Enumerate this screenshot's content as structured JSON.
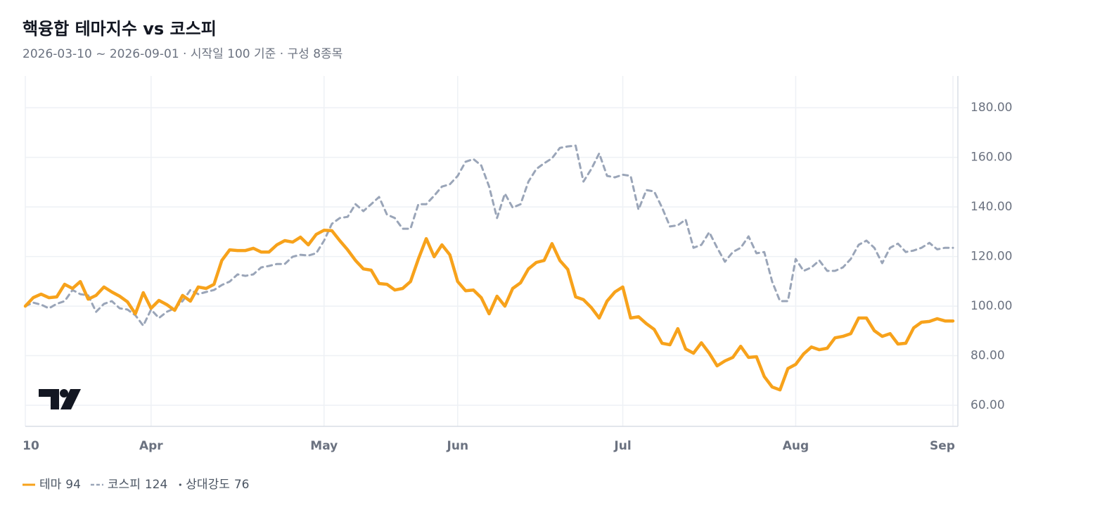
{
  "chart_data": {
    "type": "line",
    "title": "핵융합 테마지수 vs 코스피",
    "subtitle": "2026-03-10 ~ 2026-09-01 · 시작일 100 기준 · 구성 8종목",
    "categories": [
      "10",
      null,
      null,
      null,
      null,
      null,
      null,
      null,
      null,
      null,
      null,
      null,
      null,
      null,
      null,
      null,
      "Apr",
      null,
      null,
      null,
      null,
      null,
      null,
      null,
      null,
      null,
      null,
      null,
      null,
      null,
      null,
      null,
      null,
      null,
      null,
      null,
      null,
      null,
      "May",
      null,
      null,
      null,
      null,
      null,
      null,
      null,
      null,
      null,
      null,
      null,
      null,
      null,
      null,
      null,
      null,
      "Jun",
      null,
      null,
      null,
      null,
      null,
      null,
      null,
      null,
      null,
      null,
      null,
      null,
      null,
      null,
      null,
      null,
      null,
      null,
      null,
      null,
      "Jul",
      null,
      null,
      null,
      null,
      null,
      null,
      null,
      null,
      null,
      null,
      null,
      null,
      null,
      null,
      null,
      null,
      null,
      null,
      null,
      null,
      null,
      "Aug",
      null,
      null,
      null,
      null,
      null,
      null,
      null,
      null,
      null,
      null,
      null,
      null,
      null,
      null,
      null,
      null,
      null,
      null,
      null,
      "Sep"
    ],
    "series": [
      {
        "name": "테마",
        "color": "#f7a21b",
        "dashed": false,
        "values": [
          100,
          103.4,
          104.8,
          103.4,
          103.7,
          108.8,
          107.1,
          109.9,
          102.8,
          104.3,
          107.7,
          105.7,
          104.0,
          101.7,
          96.9,
          105.4,
          99.1,
          102.3,
          100.6,
          98.3,
          104.3,
          102.0,
          107.7,
          107.1,
          108.8,
          118.4,
          122.7,
          122.4,
          122.4,
          123.3,
          121.8,
          121.8,
          124.7,
          126.4,
          125.8,
          127.8,
          124.7,
          128.9,
          130.6,
          130.4,
          126.4,
          122.7,
          118.4,
          115.0,
          114.5,
          109.1,
          108.8,
          106.5,
          107.1,
          109.9,
          119.0,
          127.2,
          119.9,
          124.7,
          120.7,
          109.9,
          106.2,
          106.5,
          103.4,
          96.9,
          104.0,
          100.0,
          107.1,
          109.4,
          115.0,
          117.6,
          118.4,
          125.2,
          118.4,
          114.8,
          103.7,
          102.6,
          99.4,
          95.2,
          102.0,
          105.7,
          107.7,
          95.2,
          95.7,
          92.9,
          90.6,
          85.0,
          84.4,
          90.9,
          82.7,
          81.0,
          85.2,
          81.0,
          75.9,
          77.9,
          79.3,
          83.8,
          79.3,
          79.6,
          71.6,
          67.4,
          66.2,
          74.8,
          76.5,
          80.7,
          83.5,
          82.4,
          83.0,
          87.2,
          87.8,
          88.9,
          95.2,
          95.2,
          90.1,
          87.8,
          88.9,
          84.7,
          85.0,
          91.2,
          93.5,
          93.8,
          94.9,
          94.0,
          94.0
        ]
      },
      {
        "name": "코스피",
        "color": "#9aa5b8",
        "dashed": true,
        "values": [
          100,
          101.4,
          100.6,
          99.1,
          100.9,
          102.0,
          106.5,
          104.8,
          104.3,
          97.7,
          100.9,
          102.0,
          99.1,
          98.6,
          96.3,
          92.1,
          98.6,
          95.2,
          97.7,
          99.1,
          102.0,
          106.5,
          104.8,
          105.7,
          106.5,
          108.5,
          109.9,
          112.8,
          112.2,
          112.8,
          115.6,
          116.2,
          117.0,
          117.0,
          119.9,
          120.7,
          120.4,
          121.3,
          126.4,
          133.2,
          135.5,
          136.0,
          141.1,
          138.3,
          141.1,
          144.0,
          136.9,
          135.5,
          131.2,
          131.2,
          141.1,
          141.1,
          144.5,
          148.2,
          149.1,
          152.5,
          158.2,
          159.3,
          156.7,
          148.2,
          135.5,
          145.4,
          139.7,
          141.1,
          150.2,
          155.3,
          157.6,
          159.6,
          163.8,
          164.4,
          164.7,
          150.2,
          155.3,
          161.6,
          152.5,
          151.9,
          153.0,
          152.5,
          138.9,
          146.8,
          146.2,
          139.7,
          132.1,
          132.6,
          134.9,
          123.5,
          124.7,
          129.8,
          123.5,
          117.9,
          121.8,
          123.5,
          128.1,
          121.3,
          121.8,
          109.9,
          102.0,
          102.0,
          119.0,
          114.2,
          115.6,
          118.4,
          114.2,
          114.2,
          115.6,
          119.0,
          124.7,
          126.4,
          123.5,
          117.3,
          123.5,
          125.2,
          121.8,
          122.4,
          123.5,
          125.5,
          122.9,
          123.5,
          123.5
        ]
      }
    ],
    "legend_values": [
      94,
      124
    ],
    "relative_strength_label": "상대강도",
    "relative_strength": 76,
    "ylim": [
      51.5,
      192.8
    ],
    "yticks": [
      {
        "value": 60,
        "label": "60.00"
      },
      {
        "value": 80,
        "label": "80.00"
      },
      {
        "value": 100,
        "label": "100.00"
      },
      {
        "value": 120,
        "label": "120.00"
      },
      {
        "value": 140,
        "label": "140.00"
      },
      {
        "value": 160,
        "label": "160.00"
      },
      {
        "value": 180,
        "label": "180.00"
      }
    ],
    "grid": true,
    "y_axis_side": "right"
  }
}
